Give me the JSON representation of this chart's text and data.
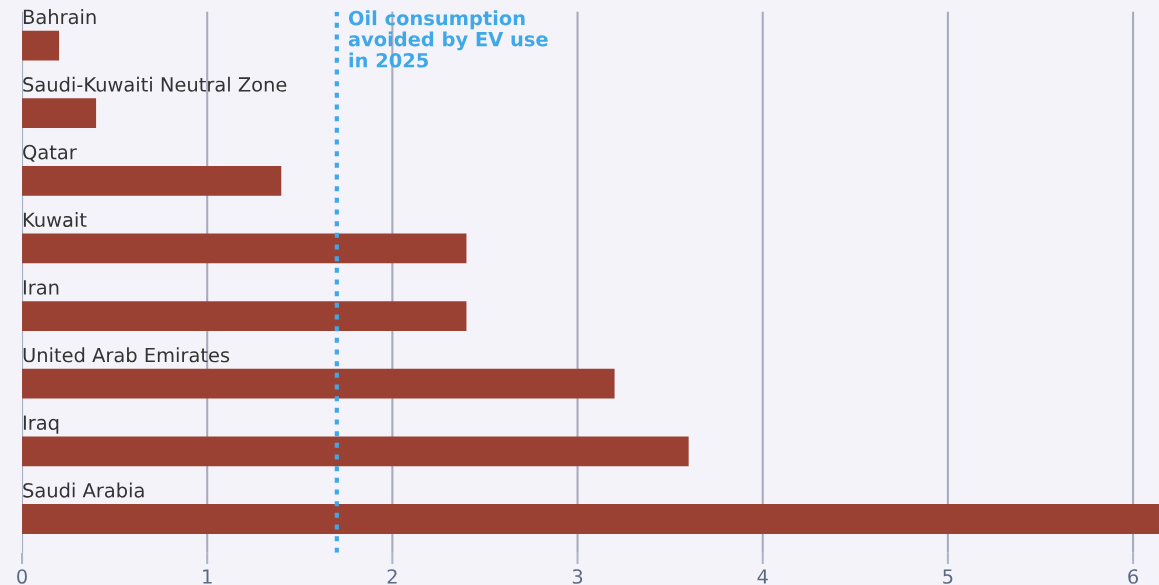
{
  "chart_data": {
    "type": "bar",
    "orientation": "horizontal",
    "categories": [
      "Bahrain",
      "Saudi-Kuwaiti Neutral Zone",
      "Qatar",
      "Kuwait",
      "Iran",
      "United Arab Emirates",
      "Iraq",
      "Saudi Arabia"
    ],
    "values": [
      0.2,
      0.4,
      1.4,
      2.4,
      2.4,
      3.2,
      3.6,
      6.14
    ],
    "color": "#9a4133",
    "xlim": [
      0,
      6.14
    ],
    "xticks": [
      0,
      1,
      2,
      3,
      4,
      5,
      6
    ],
    "grid": "x",
    "ref_lines": [
      {
        "axis": "x",
        "value": 1.7,
        "label": "Oil consumption\navoided by EV use\nin 2025",
        "color": "#3ea8e8",
        "line_style": "dotted"
      }
    ]
  }
}
